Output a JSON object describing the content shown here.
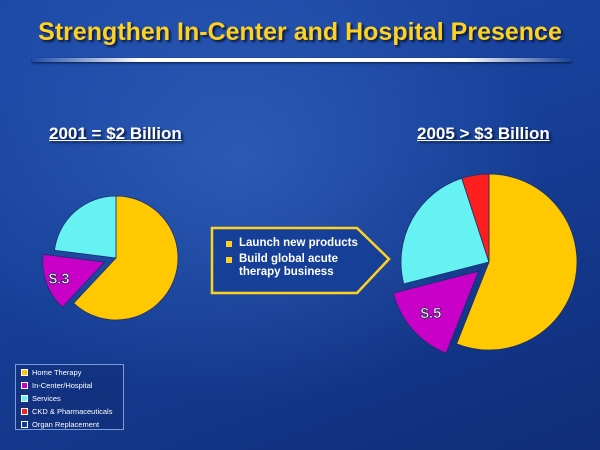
{
  "title": "Strengthen In-Center and Hospital Presence",
  "colors": {
    "title": "#ffd21f",
    "home_therapy": "#ffc800",
    "in_center_hospital": "#c800c8",
    "services": "#66f2f2",
    "ckd_pharmaceuticals": "#ff1e1e",
    "organ_replacement": "#143c96",
    "background": "#163f98"
  },
  "chart_data": [
    {
      "type": "pie",
      "title": "2001 = $2 Billion",
      "labels": [
        "Home Therapy",
        "In-Center/Hospital",
        "Services"
      ],
      "values": [
        62,
        15,
        23
      ],
      "exploded": [
        "In-Center/Hospital"
      ],
      "annotations": [
        {
          "slice": "In-Center/Hospital",
          "text": "$.3"
        }
      ]
    },
    {
      "type": "pie",
      "title": "2005 > $3 Billion",
      "labels": [
        "Home Therapy",
        "In-Center/Hospital",
        "Services",
        "CKD & Pharmaceuticals"
      ],
      "values": [
        56,
        15,
        24,
        5
      ],
      "exploded": [
        "In-Center/Hospital"
      ],
      "annotations": [
        {
          "slice": "In-Center/Hospital",
          "text": "$.5"
        }
      ]
    }
  ],
  "arrow_box": {
    "bullets": [
      "Launch new products",
      "Build global acute therapy business"
    ]
  },
  "legend": {
    "items": [
      {
        "label": "Home Therapy",
        "color": "#ffc800"
      },
      {
        "label": "In-Center/Hospital",
        "color": "#c800c8"
      },
      {
        "label": "Services",
        "color": "#66f2f2"
      },
      {
        "label": "CKD & Pharmaceuticals",
        "color": "#ff1e1e"
      },
      {
        "label": "Organ Replacement",
        "color": "#143c96"
      }
    ]
  }
}
